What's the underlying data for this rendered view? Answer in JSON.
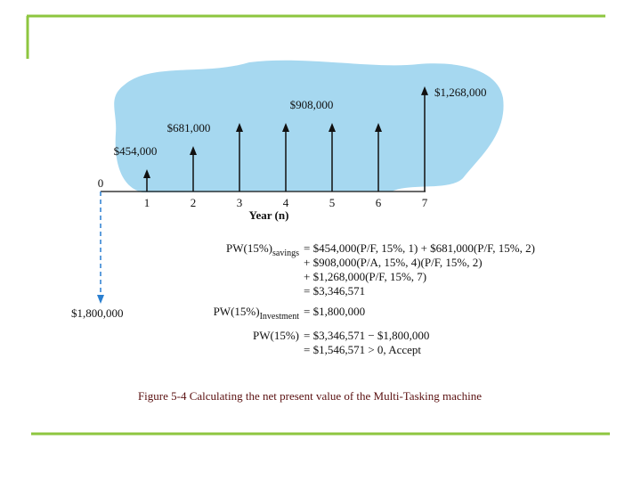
{
  "diagram": {
    "origin_label": "0",
    "years": [
      "1",
      "2",
      "3",
      "4",
      "5",
      "6",
      "7"
    ],
    "x_label": "Year (n)",
    "inflows": [
      454000,
      681000,
      908000,
      908000,
      908000,
      908000,
      1268000
    ],
    "inflow_labels": [
      "$454,000",
      "$681,000",
      null,
      "$908,000",
      null,
      null,
      "$1,268,000"
    ],
    "outflow": 1800000,
    "outflow_label": "$1,800,000"
  },
  "equations": [
    {
      "left": "PW(15%)",
      "sub": "savings",
      "right": "= $454,000(P/F, 15%, 1) + $681,000(P/F, 15%, 2)"
    },
    {
      "right": "+ $908,000(P/A, 15%, 4)(P/F, 15%, 2)"
    },
    {
      "right": "+ $1,268,000(P/F, 15%, 7)"
    },
    {
      "right": "= $3,346,571"
    },
    {
      "left": "PW(15%)",
      "sub": "Investment",
      "right": "= $1,800,000"
    },
    {
      "left": "PW(15%)",
      "right": "= $3,346,571 − $1,800,000"
    },
    {
      "right": "= $1,546,571 > 0, Accept"
    }
  ],
  "caption": "Figure 5-4 Calculating the net present value of the Multi-Tasking machine"
}
